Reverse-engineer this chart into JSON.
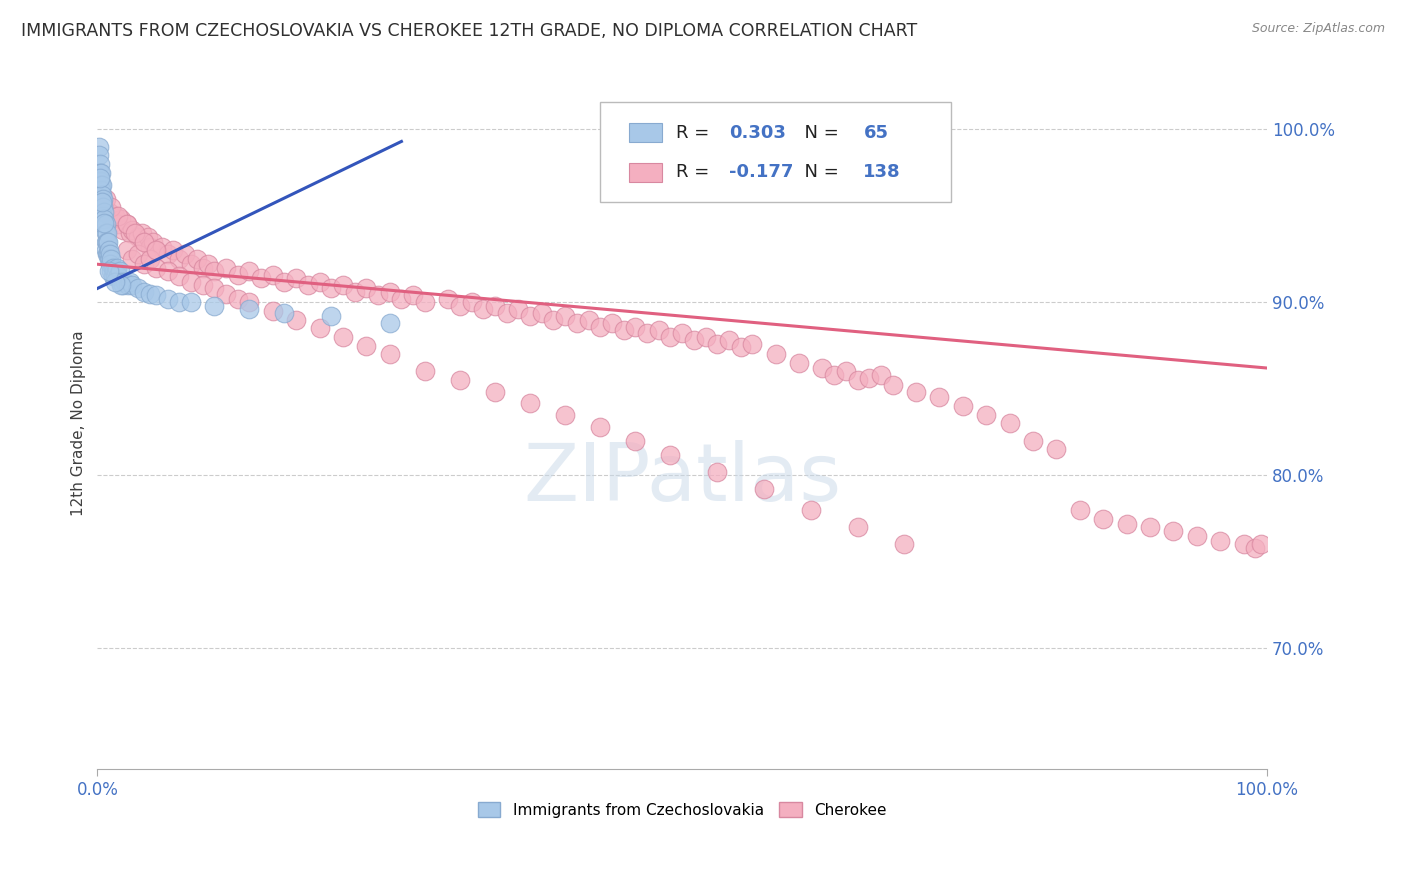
{
  "title": "IMMIGRANTS FROM CZECHOSLOVAKIA VS CHEROKEE 12TH GRADE, NO DIPLOMA CORRELATION CHART",
  "source": "Source: ZipAtlas.com",
  "ylabel": "12th Grade, No Diploma",
  "watermark": "ZIPatlas",
  "blue_color": "#a8c8e8",
  "pink_color": "#f4afc0",
  "blue_line_color": "#3355bb",
  "pink_line_color": "#e06080",
  "legend_r_color": "#4472c4",
  "legend_n_color": "#4472c4",
  "background_color": "#ffffff",
  "grid_color": "#cccccc",
  "axis_label_color": "#4472c4",
  "title_color": "#303030",
  "xlim": [
    0.0,
    1.0
  ],
  "ylim": [
    0.63,
    1.03
  ],
  "y_ticks": [
    0.7,
    0.8,
    0.9,
    1.0
  ],
  "y_tick_labels": [
    "70.0%",
    "80.0%",
    "90.0%",
    "100.0%"
  ],
  "blue_x": [
    0.001,
    0.001,
    0.002,
    0.002,
    0.002,
    0.003,
    0.003,
    0.003,
    0.003,
    0.004,
    0.004,
    0.004,
    0.005,
    0.005,
    0.005,
    0.005,
    0.006,
    0.006,
    0.007,
    0.007,
    0.007,
    0.007,
    0.008,
    0.008,
    0.008,
    0.009,
    0.009,
    0.01,
    0.01,
    0.011,
    0.011,
    0.012,
    0.012,
    0.013,
    0.013,
    0.014,
    0.015,
    0.016,
    0.017,
    0.018,
    0.019,
    0.02,
    0.022,
    0.024,
    0.026,
    0.028,
    0.03,
    0.035,
    0.04,
    0.045,
    0.05,
    0.06,
    0.07,
    0.08,
    0.1,
    0.13,
    0.16,
    0.2,
    0.25,
    0.02,
    0.015,
    0.01,
    0.006,
    0.004,
    0.002
  ],
  "blue_y": [
    0.99,
    0.985,
    0.98,
    0.975,
    0.97,
    0.975,
    0.968,
    0.965,
    0.96,
    0.968,
    0.962,
    0.958,
    0.96,
    0.955,
    0.95,
    0.945,
    0.952,
    0.948,
    0.945,
    0.94,
    0.935,
    0.93,
    0.94,
    0.935,
    0.928,
    0.935,
    0.928,
    0.93,
    0.925,
    0.928,
    0.922,
    0.925,
    0.918,
    0.92,
    0.915,
    0.918,
    0.915,
    0.918,
    0.92,
    0.915,
    0.918,
    0.912,
    0.91,
    0.912,
    0.91,
    0.912,
    0.91,
    0.908,
    0.906,
    0.905,
    0.904,
    0.902,
    0.9,
    0.9,
    0.898,
    0.896,
    0.894,
    0.892,
    0.888,
    0.91,
    0.912,
    0.918,
    0.946,
    0.958,
    0.972
  ],
  "pink_x": [
    0.005,
    0.01,
    0.012,
    0.015,
    0.018,
    0.02,
    0.022,
    0.025,
    0.028,
    0.03,
    0.035,
    0.038,
    0.04,
    0.043,
    0.045,
    0.048,
    0.05,
    0.055,
    0.06,
    0.065,
    0.07,
    0.075,
    0.08,
    0.085,
    0.09,
    0.095,
    0.1,
    0.11,
    0.12,
    0.13,
    0.14,
    0.15,
    0.16,
    0.17,
    0.18,
    0.19,
    0.2,
    0.21,
    0.22,
    0.23,
    0.24,
    0.25,
    0.26,
    0.27,
    0.28,
    0.3,
    0.31,
    0.32,
    0.33,
    0.34,
    0.35,
    0.36,
    0.37,
    0.38,
    0.39,
    0.4,
    0.41,
    0.42,
    0.43,
    0.44,
    0.45,
    0.46,
    0.47,
    0.48,
    0.49,
    0.5,
    0.51,
    0.52,
    0.53,
    0.54,
    0.55,
    0.56,
    0.58,
    0.6,
    0.62,
    0.63,
    0.64,
    0.65,
    0.66,
    0.67,
    0.68,
    0.7,
    0.72,
    0.74,
    0.76,
    0.78,
    0.8,
    0.82,
    0.84,
    0.86,
    0.88,
    0.9,
    0.92,
    0.94,
    0.96,
    0.98,
    0.99,
    0.995,
    0.025,
    0.03,
    0.035,
    0.04,
    0.045,
    0.05,
    0.06,
    0.07,
    0.08,
    0.09,
    0.1,
    0.11,
    0.12,
    0.13,
    0.15,
    0.17,
    0.19,
    0.21,
    0.23,
    0.25,
    0.28,
    0.31,
    0.34,
    0.37,
    0.4,
    0.43,
    0.46,
    0.49,
    0.53,
    0.57,
    0.61,
    0.65,
    0.69,
    0.007,
    0.012,
    0.018,
    0.025,
    0.032,
    0.04,
    0.05
  ],
  "pink_y": [
    0.958,
    0.952,
    0.948,
    0.95,
    0.945,
    0.948,
    0.942,
    0.945,
    0.94,
    0.942,
    0.938,
    0.94,
    0.935,
    0.938,
    0.932,
    0.935,
    0.93,
    0.932,
    0.928,
    0.93,
    0.925,
    0.928,
    0.922,
    0.925,
    0.92,
    0.922,
    0.918,
    0.92,
    0.916,
    0.918,
    0.914,
    0.916,
    0.912,
    0.914,
    0.91,
    0.912,
    0.908,
    0.91,
    0.906,
    0.908,
    0.904,
    0.906,
    0.902,
    0.904,
    0.9,
    0.902,
    0.898,
    0.9,
    0.896,
    0.898,
    0.894,
    0.896,
    0.892,
    0.894,
    0.89,
    0.892,
    0.888,
    0.89,
    0.886,
    0.888,
    0.884,
    0.886,
    0.882,
    0.884,
    0.88,
    0.882,
    0.878,
    0.88,
    0.876,
    0.878,
    0.874,
    0.876,
    0.87,
    0.865,
    0.862,
    0.858,
    0.86,
    0.855,
    0.856,
    0.858,
    0.852,
    0.848,
    0.845,
    0.84,
    0.835,
    0.83,
    0.82,
    0.815,
    0.78,
    0.775,
    0.772,
    0.77,
    0.768,
    0.765,
    0.762,
    0.76,
    0.758,
    0.76,
    0.93,
    0.925,
    0.928,
    0.922,
    0.925,
    0.92,
    0.918,
    0.915,
    0.912,
    0.91,
    0.908,
    0.905,
    0.902,
    0.9,
    0.895,
    0.89,
    0.885,
    0.88,
    0.875,
    0.87,
    0.86,
    0.855,
    0.848,
    0.842,
    0.835,
    0.828,
    0.82,
    0.812,
    0.802,
    0.792,
    0.78,
    0.77,
    0.76,
    0.96,
    0.955,
    0.95,
    0.945,
    0.94,
    0.935,
    0.93
  ],
  "blue_trend_x": [
    0.0,
    0.26
  ],
  "blue_trend_y_start": 0.908,
  "blue_trend_y_end": 0.993,
  "pink_trend_x": [
    0.0,
    1.0
  ],
  "pink_trend_y_start": 0.922,
  "pink_trend_y_end": 0.862
}
